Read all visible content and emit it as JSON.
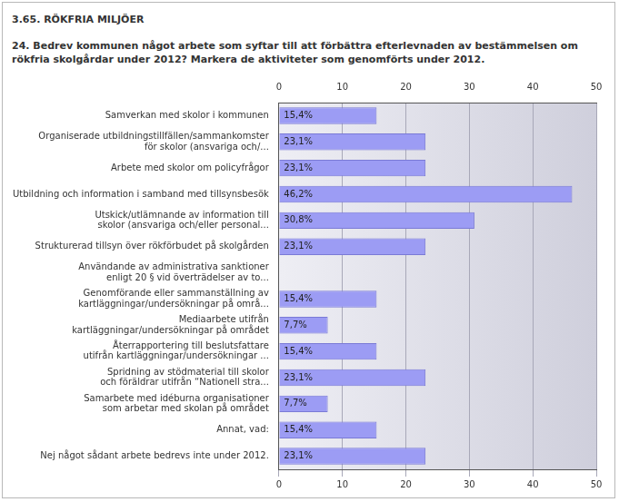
{
  "chart_data": {
    "type": "bar",
    "orientation": "horizontal",
    "subtitle": "3.65. RÖKFRIA MILJÖER",
    "title": "24. Bedrev kommunen något arbete som syftar till att förbättra efterlevnaden av bestämmelsen om rökfria skolgårdar under 2012? Markera de aktiviteter som genomförts under 2012.",
    "categories": [
      "Samverkan med skolor i kommunen",
      "Organiserade utbildningstillfällen/sammankomster\nför skolor (ansvariga och/...",
      "Arbete med skolor om policyfrågor",
      "Utbildning och information i samband med tillsynsbesök",
      "Utskick/utlämnande av information till\nskolor (ansvariga och/eller personal...",
      "Strukturerad tillsyn över rökförbudet på skolgården",
      "Användande av administrativa sanktioner\nenligt 20 § vid överträdelser av to...",
      "Genomförande eller sammanställning av\nkartläggningar/undersökningar på områ...",
      "Mediaarbete utifrån\nkartläggningar/undersökningar på området",
      "Återrapportering till beslutsfattare\nutifrån kartläggningar/undersökningar ...",
      "Spridning av stödmaterial till skolor\noch föräldrar utifrån “Nationell stra...",
      "Samarbete med idéburna organisationer\nsom arbetar med skolan på området",
      "Annat, vad:",
      "Nej något sådant arbete bedrevs inte under 2012."
    ],
    "values": [
      15.4,
      23.1,
      23.1,
      46.2,
      30.8,
      23.1,
      0,
      15.4,
      7.7,
      15.4,
      23.1,
      7.7,
      15.4,
      23.1
    ],
    "value_labels": [
      "15,4%",
      "23,1%",
      "23,1%",
      "46,2%",
      "30,8%",
      "23,1%",
      null,
      "15,4%",
      "7,7%",
      "15,4%",
      "23,1%",
      "7,7%",
      "15,4%",
      "23,1%"
    ],
    "data_labels": true,
    "color": "#9c9cf4",
    "xlim": [
      0,
      50
    ],
    "xticks": [
      0,
      10,
      20,
      30,
      40,
      50
    ],
    "grid": true
  }
}
